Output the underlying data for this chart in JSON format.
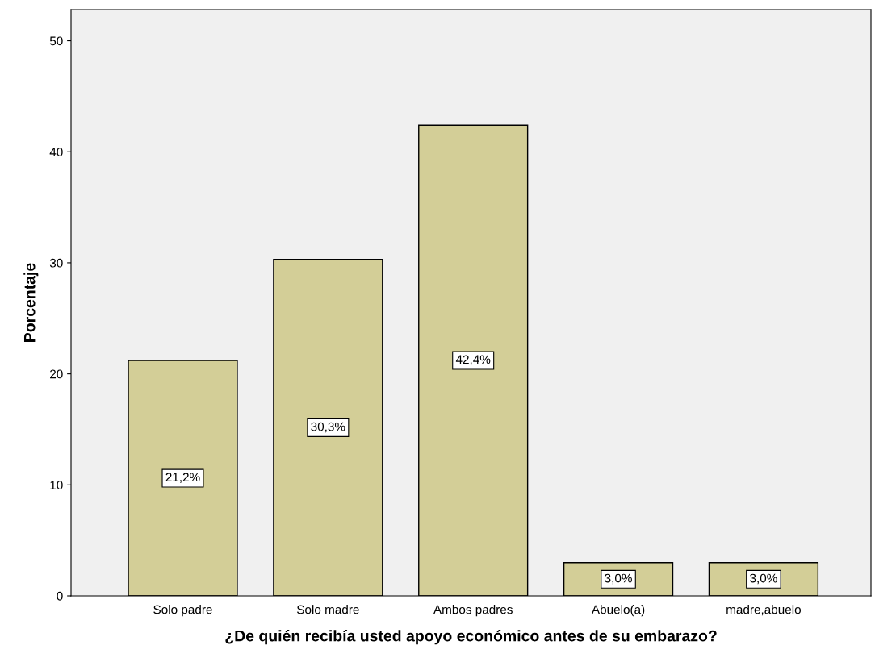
{
  "chart_data": {
    "type": "bar",
    "xlabel": "¿De quién recibía usted apoyo económico antes de su embarazo?",
    "ylabel": "Porcentaje",
    "categories": [
      "Solo padre",
      "Solo madre",
      "Ambos padres",
      "Abuelo(a)",
      "madre,abuelo"
    ],
    "values": [
      21.2,
      30.3,
      42.4,
      3.0,
      3.0
    ],
    "value_labels": [
      "21,2%",
      "30,3%",
      "42,4%",
      "3,0%",
      "3,0%"
    ],
    "color": "#d3ce97",
    "ylim": [
      0,
      52.8
    ],
    "yticks": [
      0,
      10,
      20,
      30,
      40,
      50
    ],
    "grid": false,
    "legend": false
  }
}
